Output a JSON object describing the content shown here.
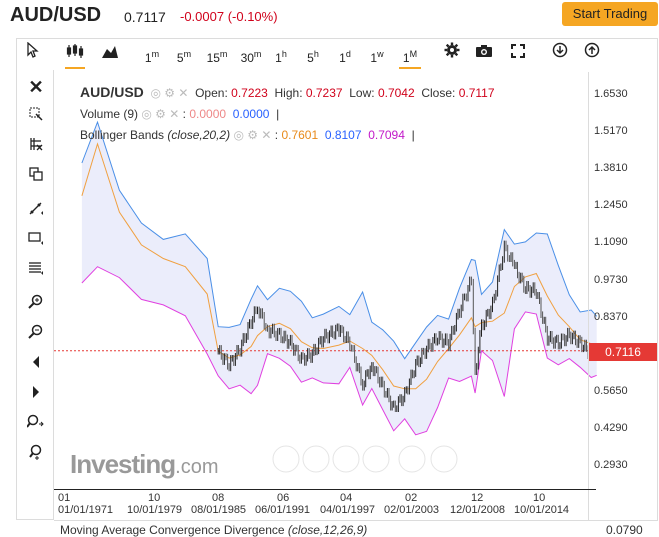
{
  "header": {
    "pair": "AUD/USD",
    "price": "0.7117",
    "change": "-0.0007 (-0.10%)",
    "start_trading": "Start Trading"
  },
  "toolbar": {
    "intervals": [
      "1m",
      "5m",
      "15m",
      "30m",
      "1h",
      "5h",
      "1d",
      "1w",
      "1M"
    ],
    "active_interval": "1M"
  },
  "legend": {
    "symbol": "AUD/USD",
    "open_label": "Open:",
    "open": "0.7223",
    "high_label": "High:",
    "high": "0.7237",
    "low_label": "Low:",
    "low": "0.7042",
    "close_label": "Close:",
    "close": "0.7117",
    "volume_label": "Volume (9)",
    "volume_sep": ":",
    "volume_a": "0.0000",
    "volume_b": "0.0000",
    "volume_bar": "|",
    "bb_label": "Bollinger Bands",
    "bb_params": "(close,20,2)",
    "bb_sep": ":",
    "bb_mid": "0.7601",
    "bb_upper": "0.8107",
    "bb_lower": "0.7094",
    "bb_bar": "|"
  },
  "price_tag": "0.7116",
  "watermark": {
    "brand": "Investing",
    "suffix": ".com"
  },
  "macd": {
    "title": "Moving Average Convergence Divergence",
    "params": "(close,12,26,9)",
    "value": "0.0790"
  },
  "colors": {
    "accent": "#f5a623",
    "down": "#d0021b",
    "bb_upper": "#4a8fe7",
    "bb_lower": "#e040e0",
    "bb_mid": "#f0a040",
    "band_fill": "#e6e8fa"
  },
  "chart_data": {
    "type": "line",
    "series_kind": "monthly candlestick with Bollinger Bands (20,2)",
    "y_ticks": [
      "1.6530",
      "1.5170",
      "1.3810",
      "1.2450",
      "1.1090",
      "0.9730",
      "0.8370",
      "0.7116",
      "0.5650",
      "0.4290",
      "0.2930"
    ],
    "x_top_ticks": [
      "01",
      "10",
      "08",
      "06",
      "04",
      "02",
      "12",
      "10"
    ],
    "x_bottom_ticks": [
      "01/01/1971",
      "10/01/1979",
      "08/01/1985",
      "06/01/1991",
      "04/01/1997",
      "02/01/2003",
      "12/01/2008",
      "10/01/2014"
    ],
    "ylim": [
      0.25,
      1.72
    ],
    "last_price": 0.7116,
    "price_series": [
      [
        "1985-06",
        0.71
      ],
      [
        "1986-06",
        0.66
      ],
      [
        "1987-06",
        0.72
      ],
      [
        "1988-06",
        0.82
      ],
      [
        "1989-01",
        0.87
      ],
      [
        "1989-12",
        0.79
      ],
      [
        "1991-01",
        0.77
      ],
      [
        "1992-01",
        0.74
      ],
      [
        "1993-01",
        0.68
      ],
      [
        "1994-01",
        0.7
      ],
      [
        "1995-01",
        0.76
      ],
      [
        "1996-06",
        0.79
      ],
      [
        "1997-06",
        0.74
      ],
      [
        "1998-08",
        0.59
      ],
      [
        "1999-06",
        0.66
      ],
      [
        "2000-06",
        0.58
      ],
      [
        "2001-06",
        0.5
      ],
      [
        "2002-06",
        0.55
      ],
      [
        "2003-06",
        0.66
      ],
      [
        "2004-06",
        0.72
      ],
      [
        "2005-06",
        0.76
      ],
      [
        "2006-06",
        0.74
      ],
      [
        "2007-06",
        0.86
      ],
      [
        "2008-07",
        0.97
      ],
      [
        "2008-11",
        0.63
      ],
      [
        "2009-06",
        0.8
      ],
      [
        "2010-06",
        0.88
      ],
      [
        "2011-07",
        1.09
      ],
      [
        "2012-06",
        1.02
      ],
      [
        "2013-06",
        0.94
      ],
      [
        "2014-06",
        0.93
      ],
      [
        "2015-06",
        0.76
      ],
      [
        "2016-06",
        0.74
      ],
      [
        "2017-06",
        0.77
      ],
      [
        "2018-06",
        0.74
      ],
      [
        "2019-06",
        0.7
      ],
      [
        "2019-12",
        0.71
      ]
    ]
  }
}
